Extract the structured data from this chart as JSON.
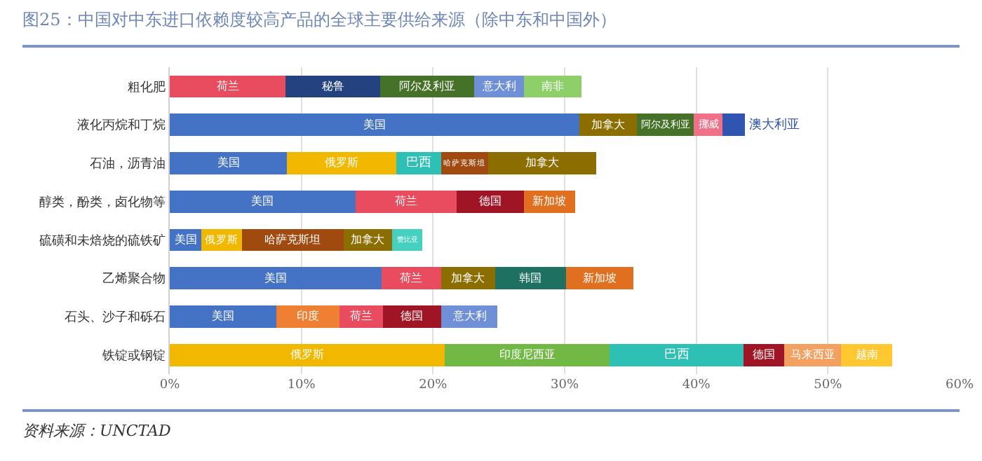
{
  "chart_data": {
    "type": "bar",
    "orientation": "horizontal",
    "stacked": true,
    "title": "图25：中国对中东进口依赖度较高产品的全球主要供给来源（除中东和中国外）",
    "annotations": [
      "资料来源：UNCTAD"
    ],
    "categories": [
      "粗化肥",
      "液化丙烷和丁烷",
      "石油，沥青油",
      "醇类，酚类，卤化物等",
      "硫磺和未焙烧的硫铁矿",
      "乙烯聚合物",
      "石头、沙子和砾石",
      "铁锭或钢锭"
    ],
    "xlim": [
      0,
      60
    ],
    "xticks": [
      {
        "value": 0,
        "label": "0%"
      },
      {
        "value": 10,
        "label": "10%"
      },
      {
        "value": 20,
        "label": "20%"
      },
      {
        "value": 30,
        "label": "30%"
      },
      {
        "value": 40,
        "label": "40%"
      },
      {
        "value": 50,
        "label": "50%"
      },
      {
        "value": 60,
        "label": "60%"
      }
    ],
    "grid": "x",
    "legend": false,
    "series": [
      {
        "name": "美国",
        "color": "#4472c4",
        "values": [
          null,
          31.1,
          8.9,
          14.1,
          2.4,
          16.1,
          8.1,
          null
        ]
      },
      {
        "name": "印度",
        "color": "#ef8033",
        "values": [
          null,
          null,
          null,
          null,
          null,
          null,
          4.8,
          null
        ]
      },
      {
        "name": "俄罗斯",
        "color": "#f2b800",
        "values": [
          null,
          null,
          8.3,
          null,
          3.1,
          null,
          null,
          20.9
        ]
      },
      {
        "name": "印度尼西亚",
        "color": "#72b844",
        "values": [
          null,
          null,
          null,
          null,
          null,
          null,
          null,
          12.5
        ]
      },
      {
        "name": "巴西",
        "color": "#2ec0b5",
        "values": [
          null,
          null,
          3.4,
          null,
          null,
          null,
          null,
          10.2
        ]
      },
      {
        "name": "哈萨克斯坦",
        "color": "#a04a10",
        "values": [
          null,
          null,
          3.6,
          null,
          7.7,
          null,
          null,
          null
        ]
      },
      {
        "name": "荷兰",
        "color": "#e84c5e",
        "values": [
          8.8,
          null,
          null,
          7.7,
          null,
          4.5,
          3.3,
          null
        ]
      },
      {
        "name": "秘鲁",
        "color": "#254280",
        "values": [
          7.2,
          null,
          null,
          null,
          null,
          null,
          null,
          null
        ]
      },
      {
        "name": "加拿大",
        "color": "#8b6d00",
        "values": [
          null,
          4.4,
          8.2,
          null,
          3.7,
          4.1,
          null,
          null
        ]
      },
      {
        "name": "韩国",
        "color": "#1e7060",
        "values": [
          null,
          null,
          null,
          null,
          null,
          5.4,
          null,
          null
        ]
      },
      {
        "name": "阿尔及利亚",
        "color": "#467128",
        "values": [
          7.1,
          4.3,
          null,
          null,
          null,
          null,
          null,
          null
        ]
      },
      {
        "name": "挪威",
        "color": "#f07088",
        "values": [
          null,
          2.2,
          null,
          null,
          null,
          null,
          null,
          null
        ]
      },
      {
        "name": "澳大利亚",
        "color": "#2f55b0",
        "values": [
          null,
          1.7,
          null,
          null,
          null,
          null,
          null,
          null
        ]
      },
      {
        "name": "德国",
        "color": "#a01525",
        "values": [
          null,
          null,
          null,
          5.1,
          null,
          null,
          4.4,
          3.1
        ]
      },
      {
        "name": "意大利",
        "color": "#6f8fd6",
        "values": [
          3.8,
          null,
          null,
          null,
          null,
          null,
          4.3,
          null
        ]
      },
      {
        "name": "南非",
        "color": "#8fcf6a",
        "values": [
          4.4,
          null,
          null,
          null,
          null,
          null,
          null,
          null
        ]
      },
      {
        "name": "赞比亚",
        "color": "#45d0c0",
        "values": [
          null,
          null,
          null,
          null,
          2.3,
          null,
          null,
          null
        ]
      },
      {
        "name": "新加坡",
        "color": "#e07020",
        "values": [
          null,
          null,
          null,
          3.9,
          null,
          5.1,
          null,
          null
        ]
      },
      {
        "name": "马来西亚",
        "color": "#f4a060",
        "values": [
          null,
          null,
          null,
          null,
          null,
          null,
          null,
          4.3
        ]
      },
      {
        "name": "越南",
        "color": "#ffc830",
        "values": [
          null,
          null,
          null,
          null,
          null,
          null,
          null,
          3.9
        ]
      }
    ]
  }
}
